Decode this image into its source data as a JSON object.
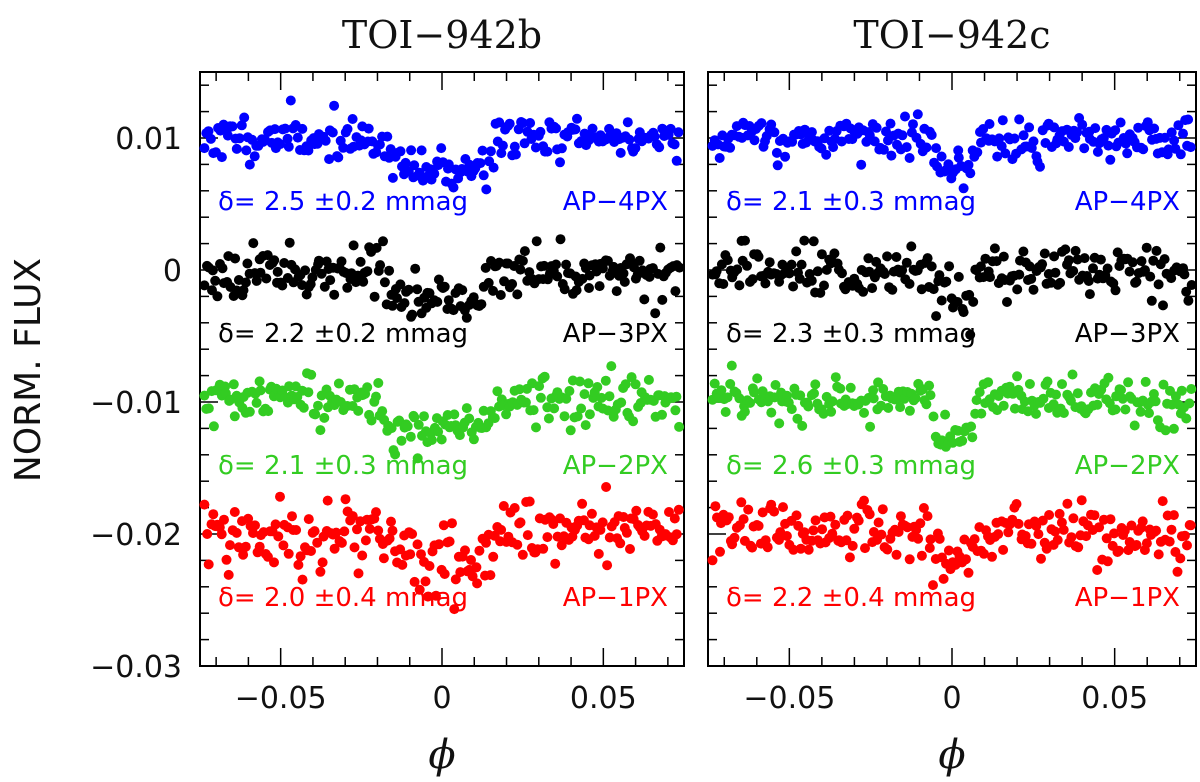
{
  "figure": {
    "ylabel": "NORM. FLUX"
  },
  "chart_data": [
    {
      "type": "scatter",
      "title": "TOI−942b",
      "xlabel": "ϕ",
      "ylabel": "NORM. FLUX",
      "xlim": [
        -0.075,
        0.075
      ],
      "ylim": [
        -0.03,
        0.015
      ],
      "x_ticks": [
        -0.05,
        0,
        0.05
      ],
      "x_tick_labels": [
        "−0.05",
        "0",
        "0.05"
      ],
      "y_ticks": [
        0.01,
        0,
        -0.01,
        -0.02,
        -0.03
      ],
      "y_tick_labels": [
        "0.01",
        "0",
        "−0.01",
        "−0.02",
        "−0.03"
      ],
      "series": [
        {
          "name": "AP−4PX",
          "color": "#0000ff",
          "offset": 0.01,
          "depth_mag": 2.5,
          "ingress": -0.018,
          "egress": 0.016,
          "noise": 0.0008,
          "seed": 11,
          "annotation": "δ= 2.5 ±0.2 mmag",
          "ann_y": 0.0053
        },
        {
          "name": "AP−3PX",
          "color": "#000000",
          "offset": 0.0,
          "depth_mag": 2.2,
          "ingress": -0.018,
          "egress": 0.016,
          "noise": 0.0009,
          "seed": 23,
          "annotation": "δ= 2.2 ±0.2 mmag",
          "ann_y": -0.0047
        },
        {
          "name": "AP−2PX",
          "color": "#33cc22",
          "offset": -0.01,
          "depth_mag": 2.1,
          "ingress": -0.018,
          "egress": 0.016,
          "noise": 0.0009,
          "seed": 37,
          "annotation": "δ= 2.1 ±0.3 mmag",
          "ann_y": -0.0147
        },
        {
          "name": "AP−1PX",
          "color": "#ff0000",
          "offset": -0.02,
          "depth_mag": 2.0,
          "ingress": -0.018,
          "egress": 0.016,
          "noise": 0.0013,
          "seed": 53,
          "annotation": "δ= 2.0 ±0.4 mmag",
          "ann_y": -0.0247
        }
      ]
    },
    {
      "type": "scatter",
      "title": "TOI−942c",
      "xlabel": "ϕ",
      "ylabel": "",
      "xlim": [
        -0.075,
        0.075
      ],
      "ylim": [
        -0.03,
        0.015
      ],
      "x_ticks": [
        -0.05,
        0,
        0.05
      ],
      "x_tick_labels": [
        "−0.05",
        "0",
        "0.05"
      ],
      "y_ticks": [
        0.01,
        0,
        -0.01,
        -0.02,
        -0.03
      ],
      "y_tick_labels": [],
      "series": [
        {
          "name": "AP−4PX",
          "color": "#0000ff",
          "offset": 0.01,
          "depth_mag": 2.1,
          "ingress": -0.006,
          "egress": 0.007,
          "noise": 0.0008,
          "seed": 71,
          "annotation": "δ= 2.1 ±0.3 mmag",
          "ann_y": 0.0053
        },
        {
          "name": "AP−3PX",
          "color": "#000000",
          "offset": 0.0,
          "depth_mag": 2.3,
          "ingress": -0.006,
          "egress": 0.007,
          "noise": 0.0009,
          "seed": 83,
          "annotation": "δ= 2.3 ±0.3 mmag",
          "ann_y": -0.0047
        },
        {
          "name": "AP−2PX",
          "color": "#33cc22",
          "offset": -0.01,
          "depth_mag": 2.6,
          "ingress": -0.006,
          "egress": 0.007,
          "noise": 0.0009,
          "seed": 97,
          "annotation": "δ= 2.6 ±0.3 mmag",
          "ann_y": -0.0147
        },
        {
          "name": "AP−1PX",
          "color": "#ff0000",
          "offset": -0.02,
          "depth_mag": 2.2,
          "ingress": -0.006,
          "egress": 0.007,
          "noise": 0.0011,
          "seed": 109,
          "annotation": "δ= 2.2 ±0.4 mmag",
          "ann_y": -0.0247
        }
      ]
    }
  ]
}
